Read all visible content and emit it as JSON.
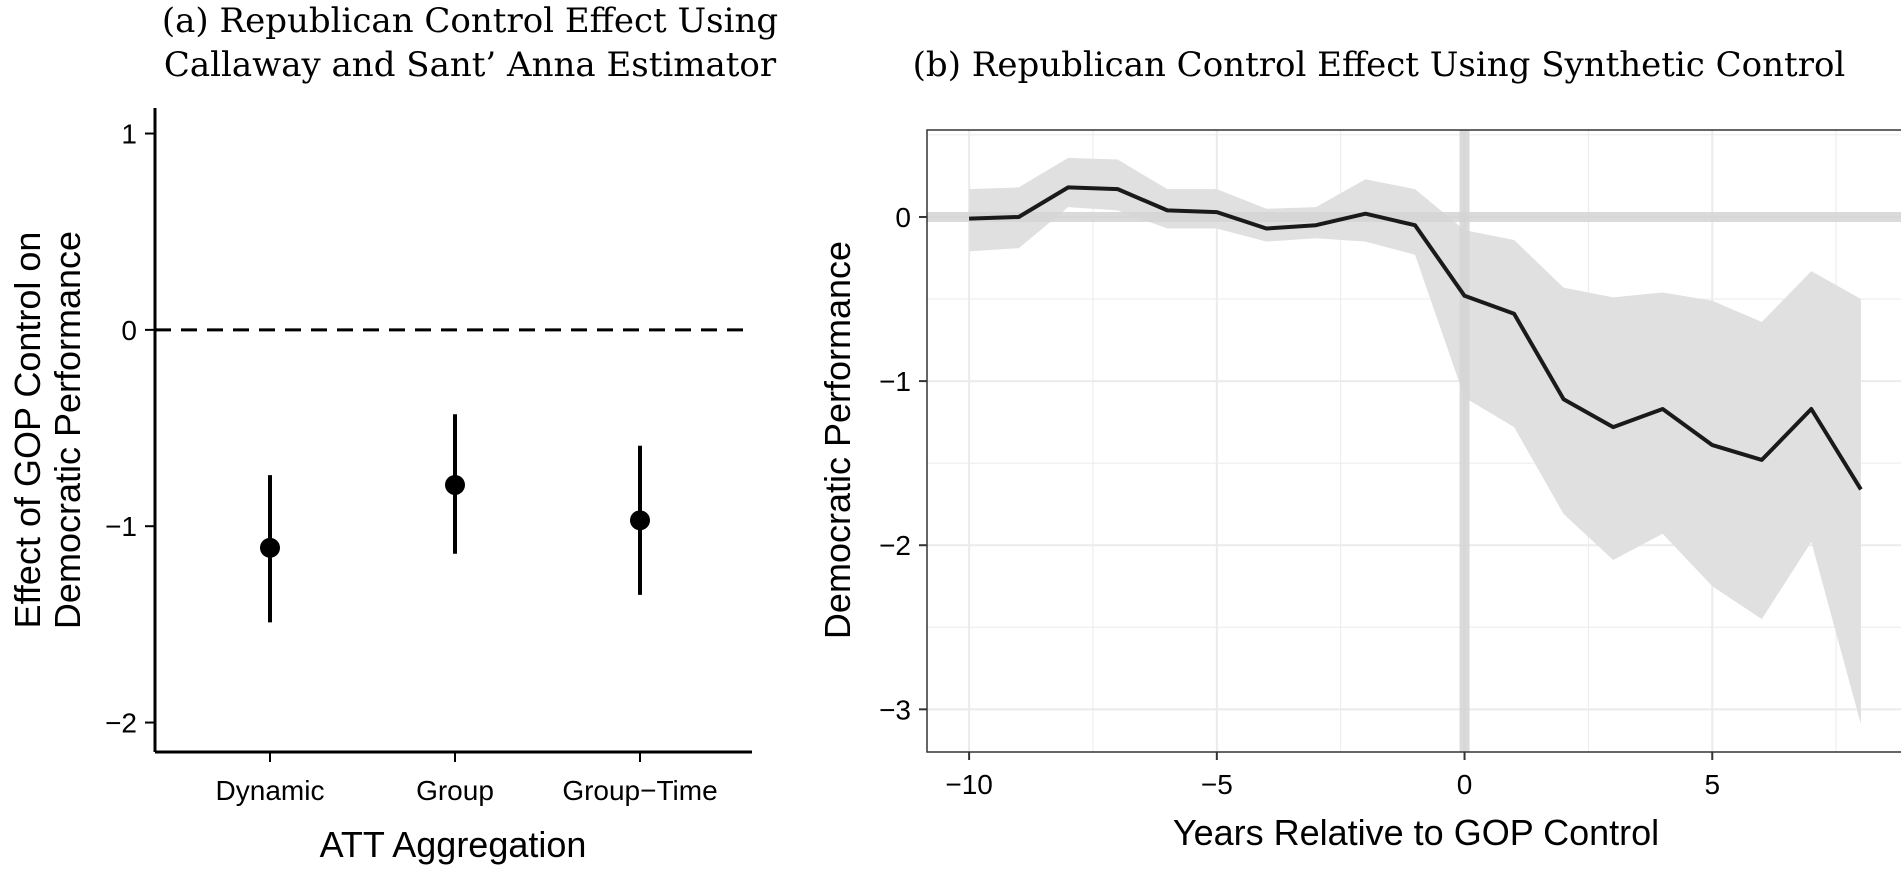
{
  "chart_data": [
    {
      "type": "scatter",
      "title_lines": [
        "(a) Republican Control Effect Using",
        "Callaway and Sant’ Anna Estimator"
      ],
      "xlabel": "ATT Aggregation",
      "ylabel_lines": [
        "Effect of GOP Control on",
        "Democratic Performance"
      ],
      "categories": [
        "Dynamic",
        "Group",
        "Group−Time"
      ],
      "points": [
        {
          "category": "Dynamic",
          "estimate": -1.11,
          "lower": -1.49,
          "upper": -0.74
        },
        {
          "category": "Group",
          "estimate": -0.79,
          "lower": -1.14,
          "upper": -0.43
        },
        {
          "category": "Group−Time",
          "estimate": -0.97,
          "lower": -1.35,
          "upper": -0.59
        }
      ],
      "ylim": [
        -2.15,
        1.13
      ],
      "yticks": [
        1,
        0,
        -1,
        -2
      ],
      "ytick_labels": [
        "1",
        "0",
        "−1",
        "−2"
      ],
      "reference_line": 0,
      "grid": false
    },
    {
      "type": "line",
      "title": "(b) Republican Control Effect Using Synthetic Control",
      "xlabel": "Years Relative to GOP Control",
      "ylabel": "Democratic Performance",
      "x": [
        -10,
        -9,
        -8,
        -7,
        -6,
        -5,
        -4,
        -3,
        -2,
        -1,
        0,
        1,
        2,
        3,
        4,
        5,
        6,
        7,
        8
      ],
      "y": [
        -0.01,
        0.0,
        0.18,
        0.17,
        0.04,
        0.03,
        -0.07,
        -0.05,
        0.02,
        -0.05,
        -0.48,
        -0.59,
        -1.11,
        -1.28,
        -1.17,
        -1.39,
        -1.48,
        -1.17,
        -1.66
      ],
      "upper": [
        0.17,
        0.18,
        0.36,
        0.35,
        0.17,
        0.17,
        0.05,
        0.06,
        0.23,
        0.17,
        -0.08,
        -0.14,
        -0.43,
        -0.49,
        -0.46,
        -0.51,
        -0.64,
        -0.33,
        -0.5
      ],
      "lower": [
        -0.21,
        -0.19,
        0.06,
        0.04,
        -0.07,
        -0.07,
        -0.15,
        -0.13,
        -0.15,
        -0.23,
        -1.1,
        -1.28,
        -1.81,
        -2.09,
        -1.93,
        -2.25,
        -2.45,
        -1.98,
        -3.09
      ],
      "xlim": [
        -10.85,
        8.85
      ],
      "ylim": [
        -3.26,
        0.53
      ],
      "xticks": [
        -10,
        -5,
        0,
        5
      ],
      "xtick_labels": [
        "−10",
        "−5",
        "0",
        "5"
      ],
      "yticks": [
        0,
        -1,
        -2,
        -3
      ],
      "ytick_labels": [
        "0",
        "−1",
        "−2",
        "−3"
      ],
      "reference_lines": {
        "x": 0,
        "y": 0
      },
      "grid": true,
      "colors": {
        "line": "#1a1a1a",
        "ribbon": "#e0e0e0",
        "reference": "#d4d4d4",
        "grid": "#ebebeb"
      }
    }
  ]
}
